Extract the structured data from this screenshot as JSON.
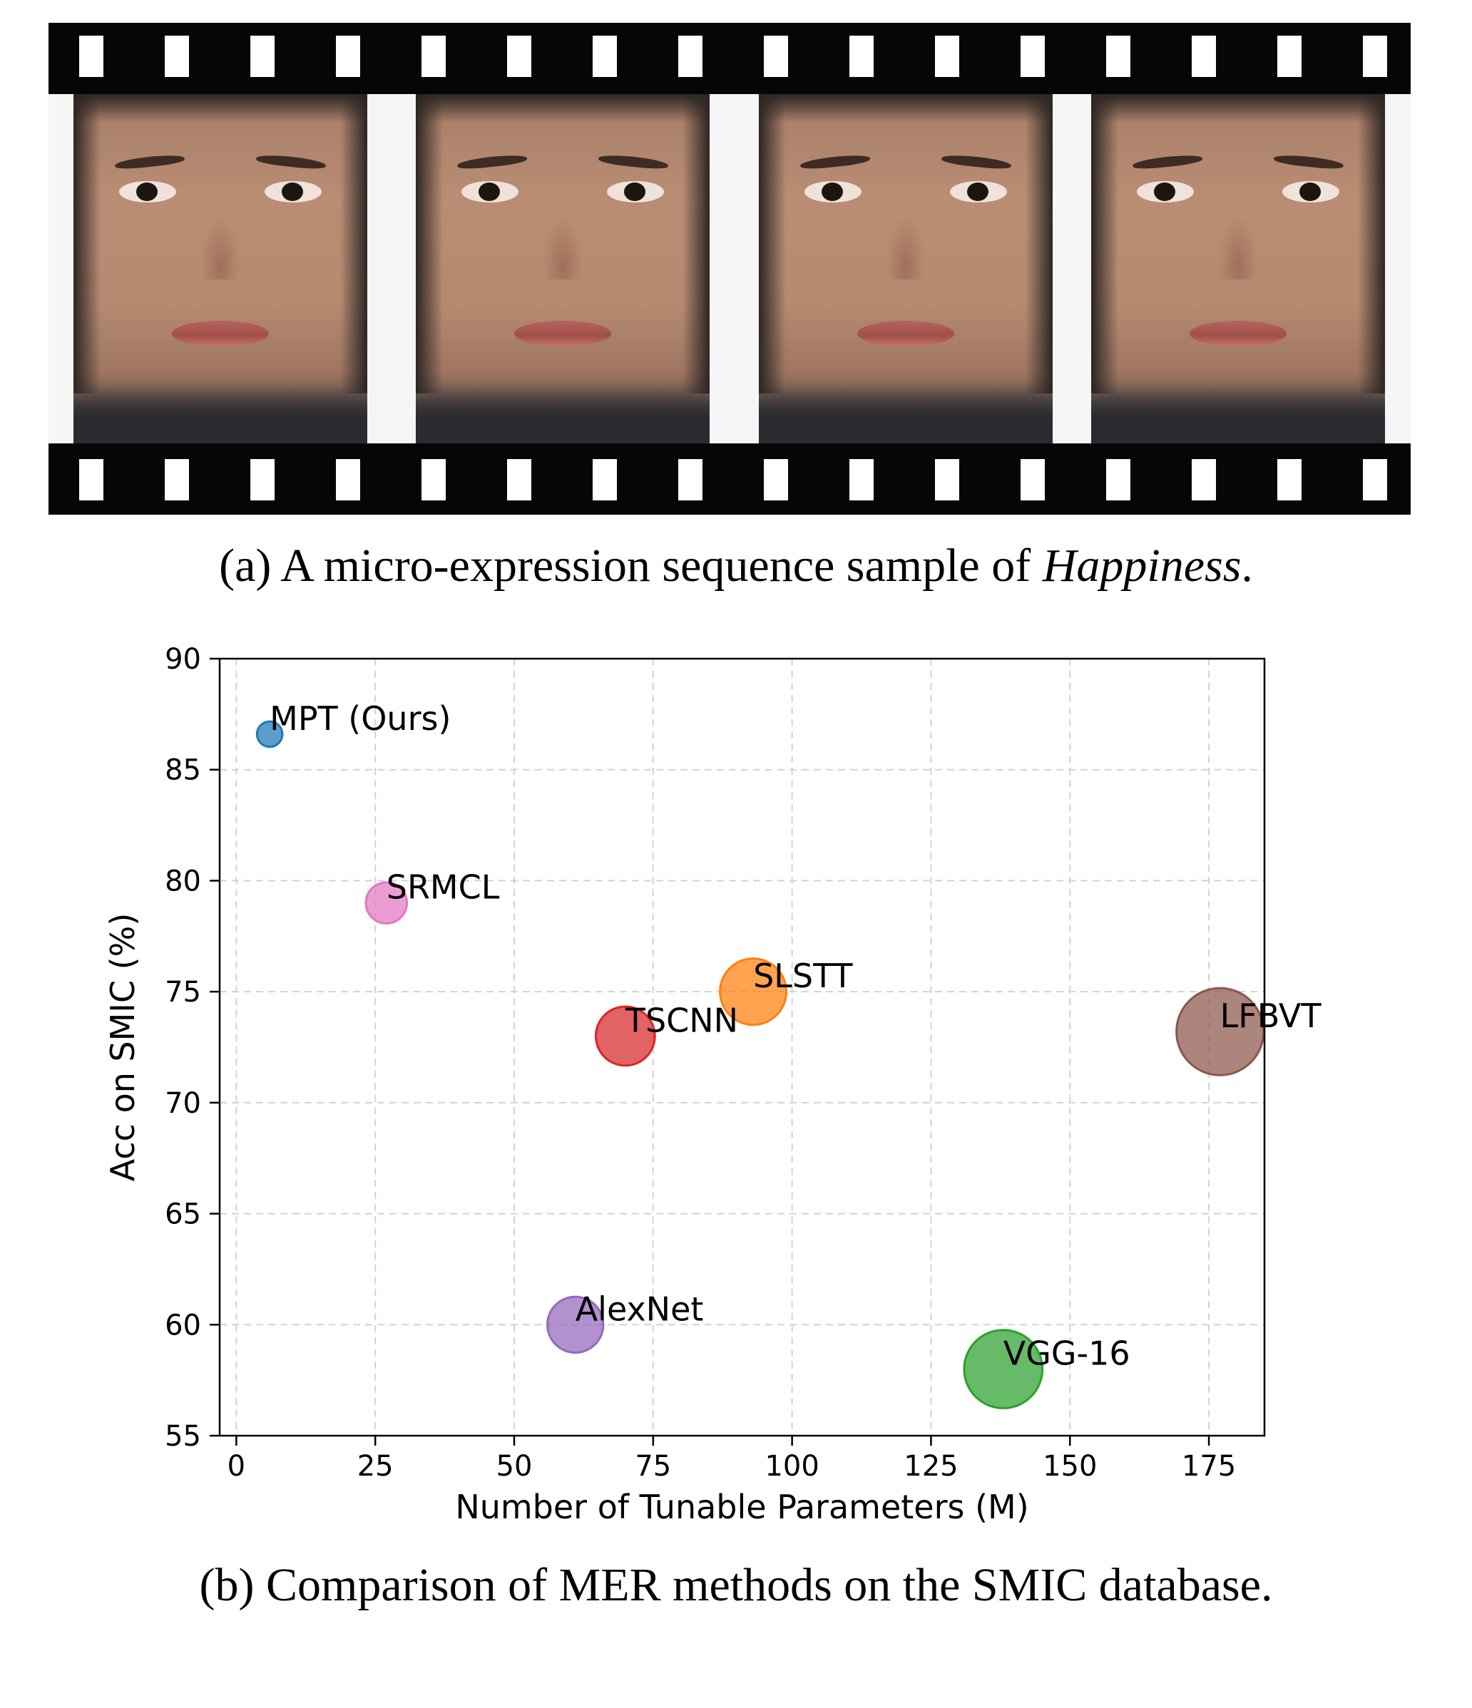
{
  "caption_a": {
    "prefix": "(a) A micro-expression sequence sample of ",
    "emphasis": "Happiness",
    "suffix": "."
  },
  "caption_b": "(b) Comparison of MER methods on the SMIC database.",
  "chart_data": {
    "type": "scatter",
    "xlabel": "Number of Tunable Parameters (M)",
    "ylabel": "Acc on SMIC (%)",
    "xlim": [
      -3,
      185
    ],
    "ylim": [
      55,
      90
    ],
    "xticks": [
      0,
      25,
      50,
      75,
      100,
      125,
      150,
      175
    ],
    "yticks": [
      55,
      60,
      65,
      70,
      75,
      80,
      85,
      90
    ],
    "grid": true,
    "points": [
      {
        "label": "MPT (Ours)",
        "x": 6,
        "y": 86.6,
        "size": 6,
        "color": "#1f77b4"
      },
      {
        "label": "SRMCL",
        "x": 27,
        "y": 79,
        "size": 27,
        "color": "#e377c2"
      },
      {
        "label": "SLSTT",
        "x": 93,
        "y": 75,
        "size": 93,
        "color": "#ff7f0e"
      },
      {
        "label": "TSCNN",
        "x": 70,
        "y": 73,
        "size": 70,
        "color": "#d62728"
      },
      {
        "label": "LFBVT",
        "x": 177,
        "y": 73.2,
        "size": 177,
        "color": "#8c564b"
      },
      {
        "label": "AlexNet",
        "x": 61,
        "y": 60,
        "size": 61,
        "color": "#9467bd"
      },
      {
        "label": "VGG-16",
        "x": 138,
        "y": 58,
        "size": 138,
        "color": "#2ca02c"
      }
    ]
  }
}
